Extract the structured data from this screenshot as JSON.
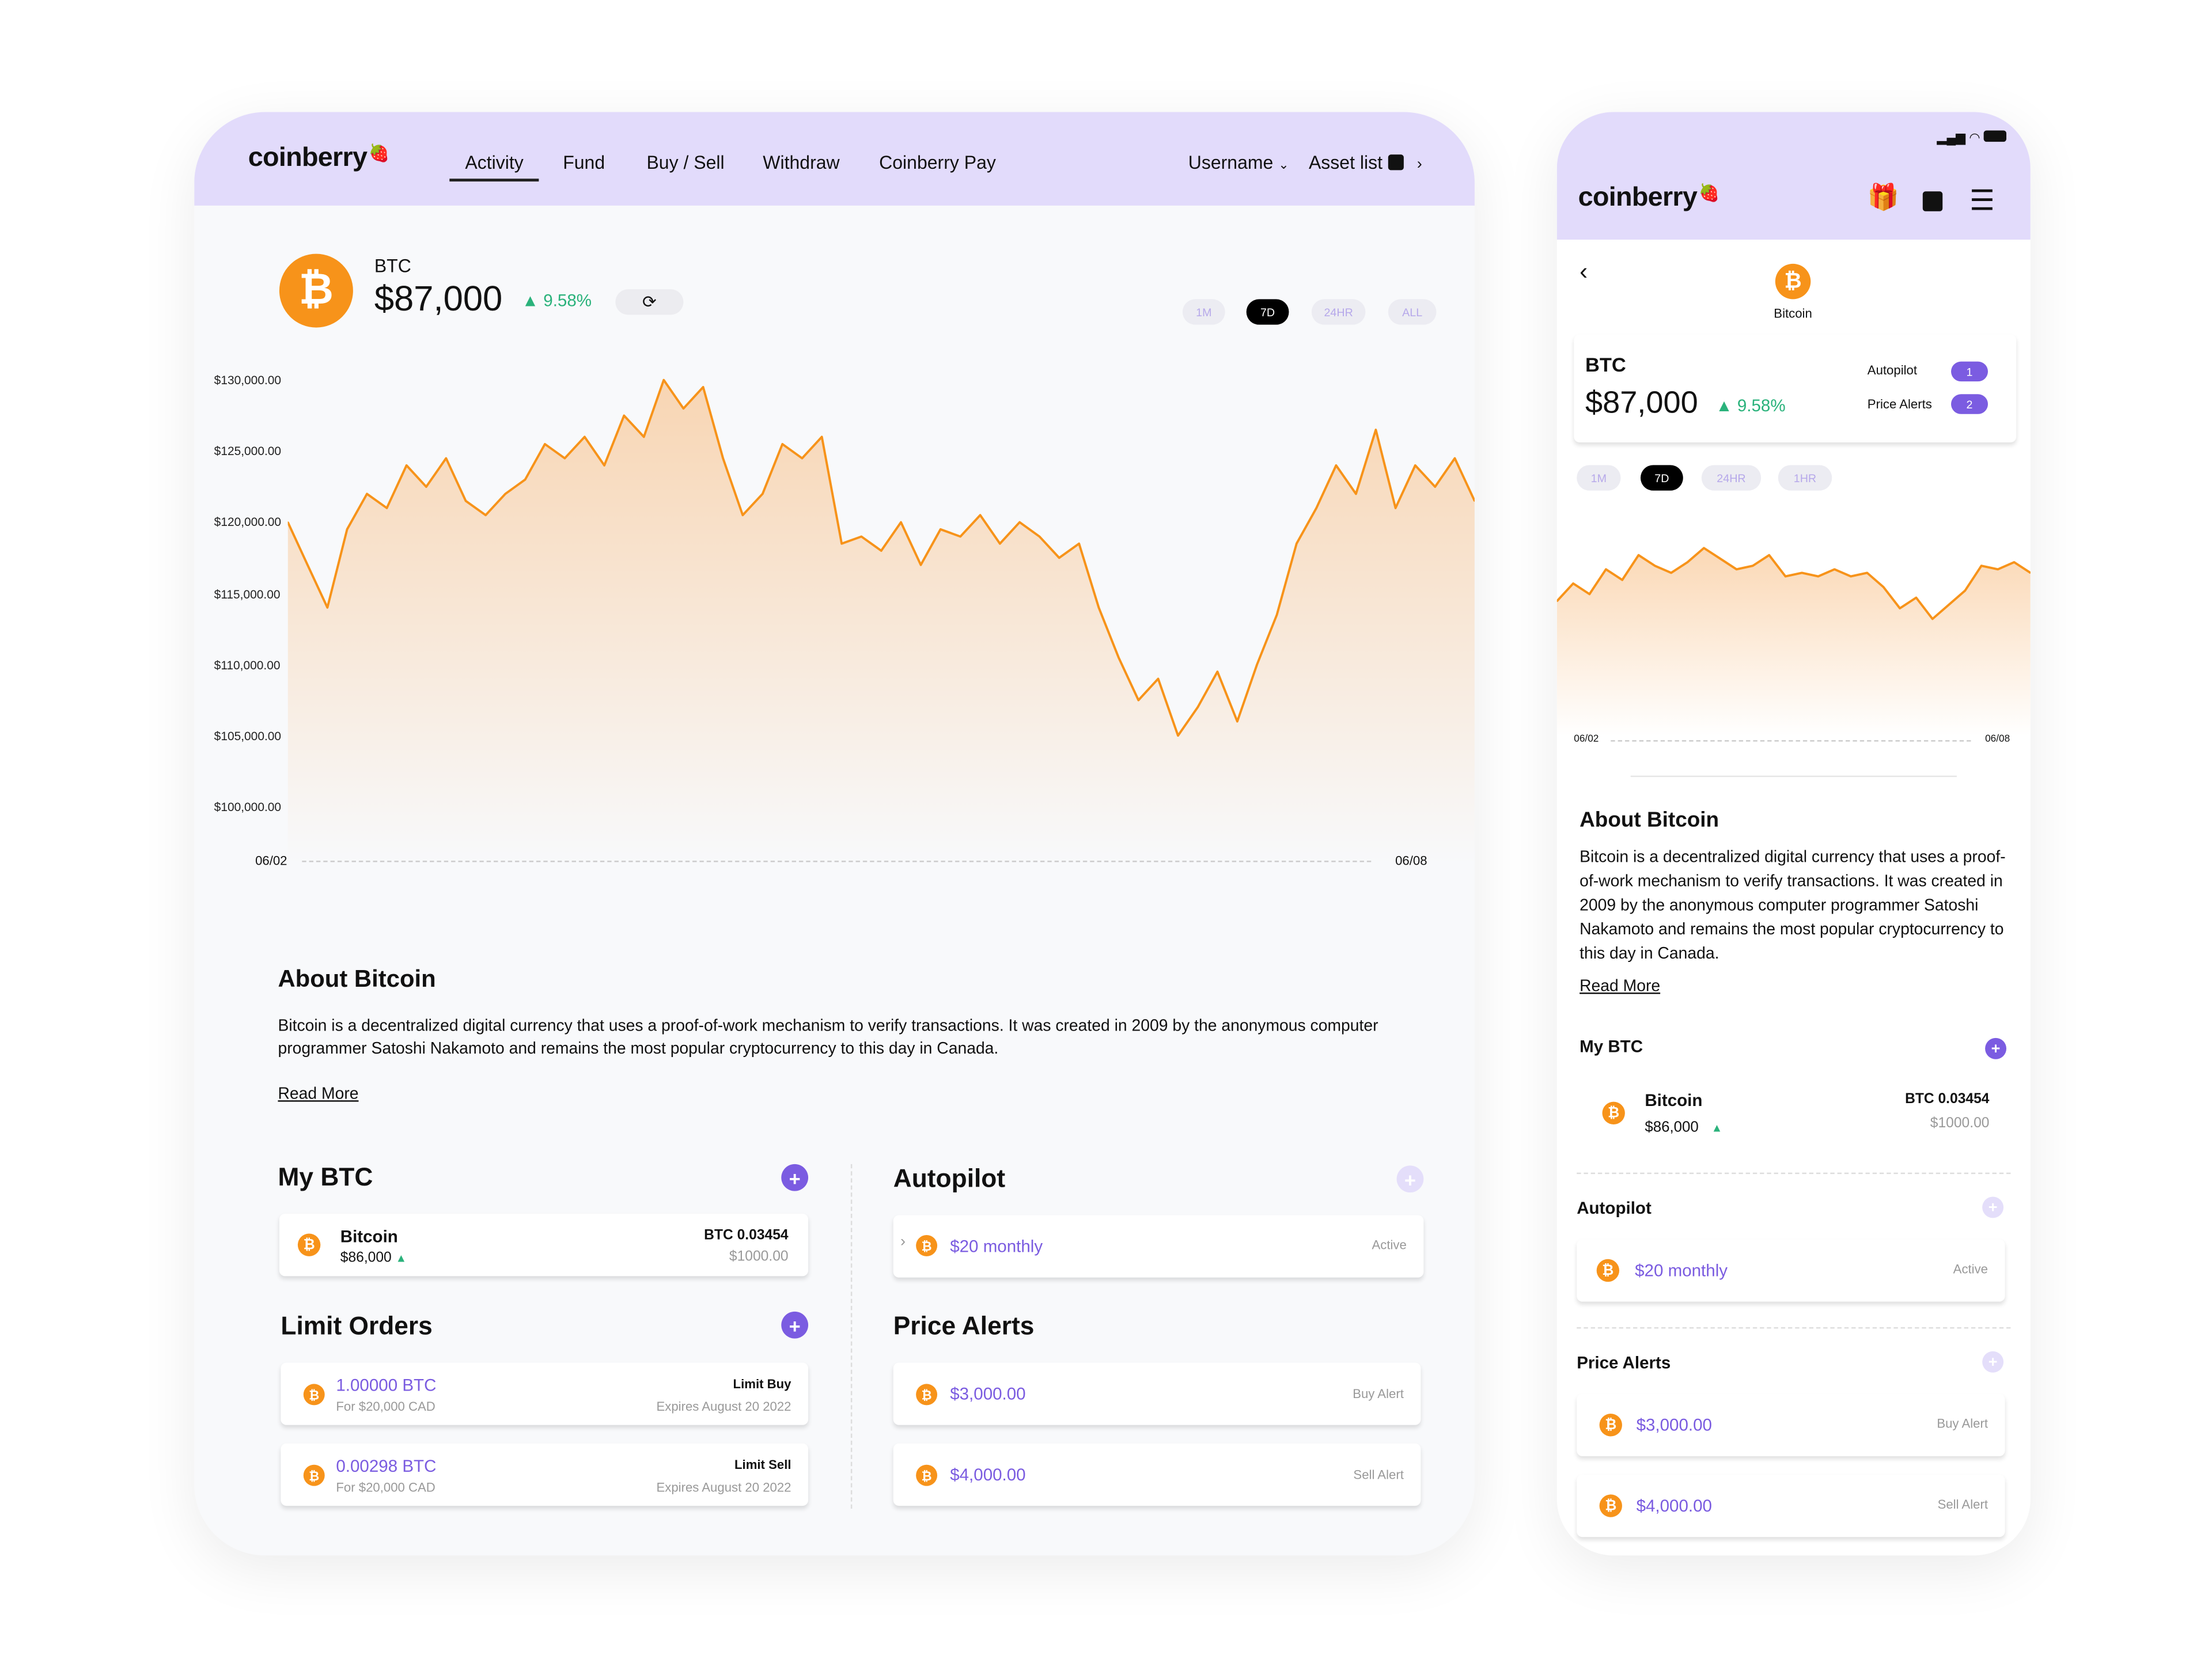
{
  "brand": "coinberry",
  "desktop": {
    "nav": [
      "Activity",
      "Fund",
      "Buy / Sell",
      "Withdraw",
      "Coinberry Pay"
    ],
    "active_nav": "Activity",
    "username": "Username",
    "asset_list": "Asset list",
    "ticker": "BTC",
    "price": "$87,000",
    "change": "▲ 9.58%",
    "ranges": [
      "1M",
      "7D",
      "24HR",
      "ALL"
    ],
    "selected_range": "7D",
    "about_title": "About Bitcoin",
    "about_text": "Bitcoin is a decentralized digital currency that uses a proof-of-work mechanism to verify transactions. It was created in 2009 by the anonymous computer programmer Satoshi Nakamoto and remains the most popular cryptocurrency to this day in Canada.",
    "read_more": "Read More",
    "my_btc": {
      "title": "My BTC",
      "name": "Bitcoin",
      "price": "$86,000",
      "amount": "BTC 0.03454",
      "value": "$1000.00"
    },
    "limit_orders": {
      "title": "Limit Orders",
      "items": [
        {
          "amount": "1.00000 BTC",
          "sub": "For $20,000 CAD",
          "type": "Limit Buy",
          "expires": "Expires August 20 2022"
        },
        {
          "amount": "0.00298 BTC",
          "sub": "For $20,000 CAD",
          "type": "Limit Sell",
          "expires": "Expires August 20 2022"
        }
      ]
    },
    "autopilot": {
      "title": "Autopilot",
      "label": "$20 monthly",
      "status": "Active"
    },
    "price_alerts": {
      "title": "Price Alerts",
      "items": [
        {
          "label": "$3,000.00",
          "type": "Buy Alert"
        },
        {
          "label": "$4,000.00",
          "type": "Sell Alert"
        }
      ]
    }
  },
  "mobile": {
    "coin_name": "Bitcoin",
    "ticker": "BTC",
    "price": "$87,000",
    "change": "▲ 9.58%",
    "autopilot_label": "Autopilot",
    "autopilot_count": "1",
    "alerts_label": "Price Alerts",
    "alerts_count": "2",
    "ranges": [
      "1M",
      "7D",
      "24HR",
      "1HR"
    ],
    "selected_range": "7D",
    "about_title": "About Bitcoin",
    "about_text": "Bitcoin is a decentralized digital currency that uses a proof-of-work mechanism to verify transactions. It was created in 2009 by the anonymous computer programmer Satoshi Nakamoto and remains the most popular cryptocurrency to this day in Canada.",
    "read_more": "Read More",
    "my_btc": {
      "title": "My BTC",
      "name": "Bitcoin",
      "price": "$86,000",
      "amount": "BTC 0.03454",
      "value": "$1000.00"
    },
    "autopilot": {
      "title": "Autopilot",
      "label": "$20 monthly",
      "status": "Active"
    },
    "price_alerts": {
      "title": "Price Alerts",
      "items": [
        {
          "label": "$3,000.00",
          "type": "Buy Alert"
        },
        {
          "label": "$4,000.00",
          "type": "Sell Alert"
        }
      ]
    }
  },
  "colors": {
    "accent": "#7b5ce1",
    "header": "#e2dbfb",
    "bitcoin": "#f7931a",
    "positive": "#2ab27b",
    "line": "#f7931a"
  },
  "chart_data": [
    {
      "type": "area",
      "ylim": [
        100000,
        130000
      ],
      "yticks": [
        "$130,000.00",
        "$125,000.00",
        "$120,000.00",
        "$115,000.00",
        "$110,000.00",
        "$105,000.00",
        "$100,000.00"
      ],
      "xticks": [
        "06/02",
        "06/08"
      ],
      "values": [
        120000,
        117000,
        114000,
        119500,
        122000,
        121000,
        124000,
        122500,
        124500,
        121500,
        120500,
        122000,
        123000,
        125500,
        124500,
        126000,
        124000,
        127500,
        126000,
        130000,
        128000,
        129500,
        124500,
        120500,
        122000,
        125500,
        124500,
        126000,
        118500,
        119000,
        118000,
        120000,
        117000,
        119500,
        119000,
        120500,
        118500,
        120000,
        119000,
        117500,
        118500,
        114000,
        110500,
        107500,
        109000,
        105000,
        107000,
        109500,
        106000,
        110000,
        113500,
        118500,
        121000,
        124000,
        122000,
        126500,
        121000,
        124000,
        122500,
        124500,
        121500
      ],
      "grid": false
    },
    {
      "type": "area",
      "xticks": [
        "06/02",
        "06/08"
      ],
      "values": [
        121000,
        123500,
        122000,
        125500,
        124000,
        127500,
        126000,
        125000,
        126500,
        128500,
        127000,
        125500,
        126000,
        127500,
        124500,
        125000,
        124500,
        125500,
        124500,
        125000,
        123000,
        120000,
        121500,
        118500,
        120500,
        122500,
        126000,
        125500,
        126500,
        125000
      ],
      "grid": false
    }
  ]
}
